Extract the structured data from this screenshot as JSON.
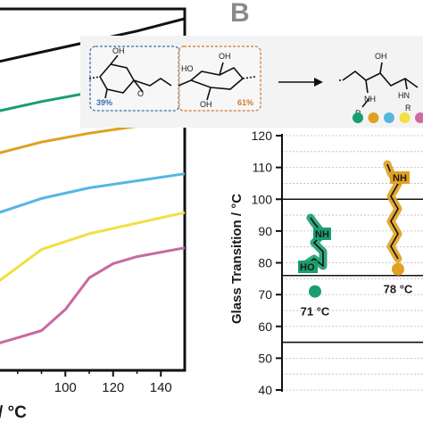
{
  "panel_b_label": "B",
  "scheme": {
    "left_unit_percent": "39%",
    "right_unit_percent": "61%",
    "left_oh_top": "OH",
    "right_oh_top": "OH",
    "right_ho": "HO",
    "left_o": "O",
    "right_oh_bottom": "OH",
    "product_oh": "OH",
    "product_nh": "NH",
    "product_hn": "HN",
    "product_r1": "R",
    "product_r2": "R",
    "dot_colors": [
      "#1a9e6e",
      "#e0a020",
      "#55b7e0",
      "#f0e040",
      "#d06aa0"
    ],
    "left_box_color": "#3a6fb0",
    "right_box_color": "#d0782a"
  },
  "chart_data": [
    {
      "type": "line",
      "title": "",
      "xlabel": "/ °C",
      "ylabel": "",
      "xlim": [
        70,
        150
      ],
      "xticks": [
        "100",
        "120",
        "140"
      ],
      "series": [
        {
          "color": "#111111",
          "x": [
            70,
            90,
            110,
            130,
            150
          ],
          "y": [
            0.86,
            0.89,
            0.92,
            0.95,
            0.985
          ]
        },
        {
          "color": "#1a9e6e",
          "x": [
            70,
            90,
            110,
            130,
            150
          ],
          "y": [
            0.72,
            0.75,
            0.775,
            0.795,
            0.815
          ]
        },
        {
          "color": "#e0a020",
          "x": [
            70,
            90,
            110,
            130,
            150
          ],
          "y": [
            0.6,
            0.635,
            0.66,
            0.68,
            0.695
          ]
        },
        {
          "color": "#55b7e0",
          "x": [
            70,
            90,
            110,
            130,
            150
          ],
          "y": [
            0.43,
            0.475,
            0.505,
            0.525,
            0.545
          ]
        },
        {
          "color": "#f0e040",
          "x": [
            70,
            80,
            90,
            110,
            130,
            150
          ],
          "y": [
            0.23,
            0.28,
            0.33,
            0.375,
            0.405,
            0.435
          ]
        },
        {
          "color": "#c86aa0",
          "x": [
            70,
            80,
            90,
            100,
            110,
            120,
            130,
            150
          ],
          "y": [
            0.06,
            0.08,
            0.1,
            0.16,
            0.25,
            0.29,
            0.31,
            0.335
          ]
        }
      ]
    },
    {
      "type": "scatter",
      "title": "",
      "ylabel": "Glass Transition / °C",
      "ylim": [
        40,
        120
      ],
      "yticks": [
        "40",
        "50",
        "60",
        "70",
        "80",
        "90",
        "100",
        "110",
        "120"
      ],
      "grid": true,
      "reference_lines": [
        100,
        76,
        55
      ],
      "points": [
        {
          "value": 71,
          "label": "71 °C",
          "color": "#1a9e6e",
          "structure_nh": "NH",
          "structure_ho": "HO"
        },
        {
          "value": 78,
          "label": "78 °C",
          "color": "#e0a020",
          "structure_nh": "NH"
        }
      ]
    }
  ]
}
